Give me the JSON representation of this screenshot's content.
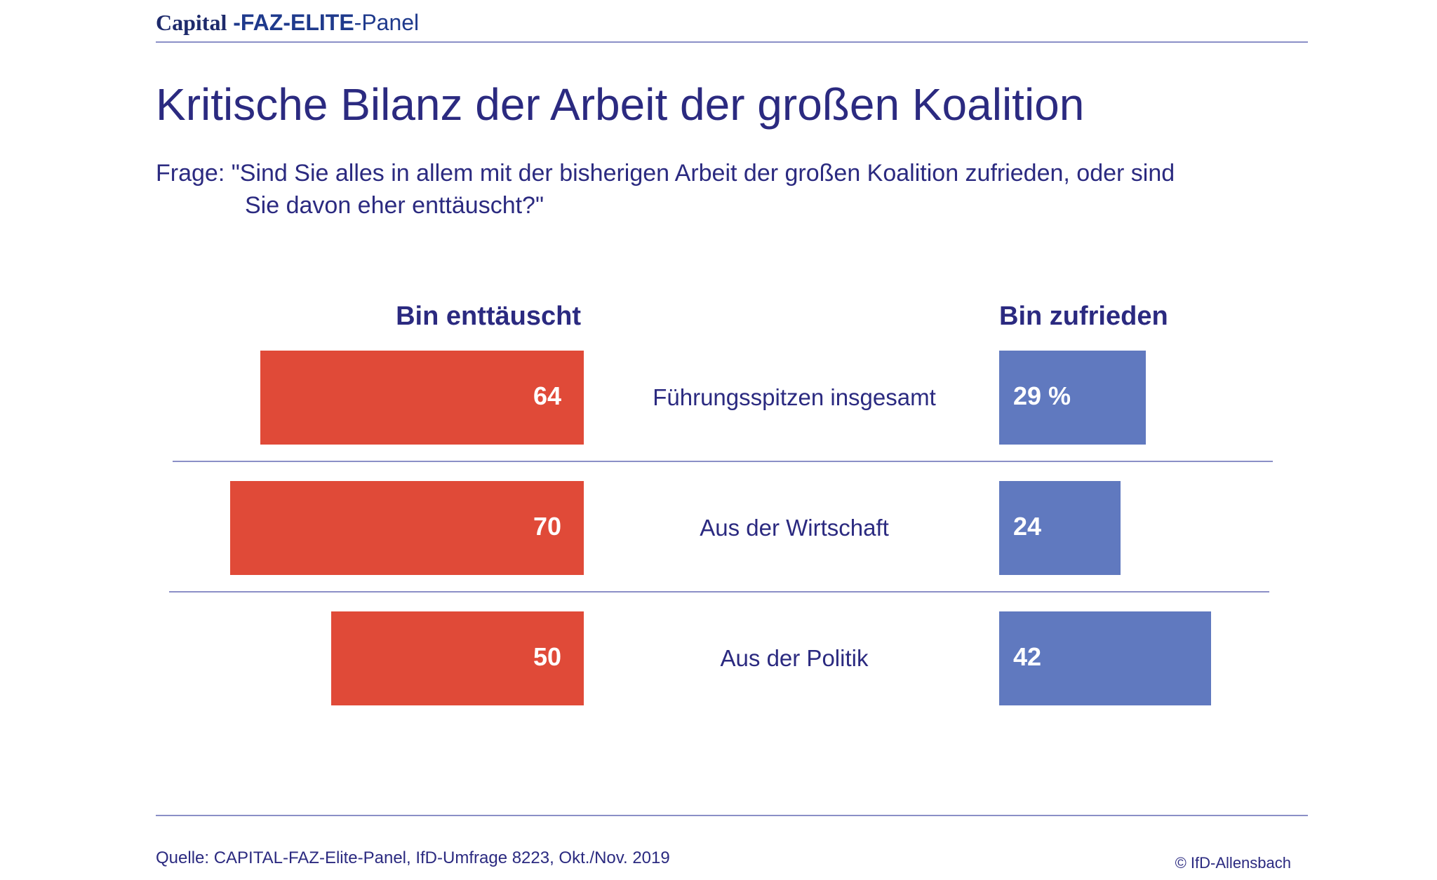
{
  "header": {
    "brand_part1": "Capital",
    "brand_part2": "-FAZ-ELITE",
    "brand_part3": "-Panel"
  },
  "colors": {
    "disappointed": "#e04a38",
    "satisfied": "#6079bf",
    "text": "#2b2a80",
    "rule": "#8b8fc7"
  },
  "chart_data": {
    "type": "bar",
    "title": "Kritische Bilanz der Arbeit der großen Koalition",
    "question_line1": "Frage: \"Sind Sie alles in allem mit der bisherigen Arbeit der großen Koalition zufrieden, oder sind",
    "question_line2": "Sie davon eher enttäuscht?\"",
    "categories": [
      "Führungsspitzen insgesamt",
      "Aus der Wirtschaft",
      "Aus der Politik"
    ],
    "series": [
      {
        "name": "Bin enttäuscht",
        "values": [
          64,
          70,
          50
        ],
        "labels": [
          "64",
          "70",
          "50"
        ],
        "color": "#e04a38"
      },
      {
        "name": "Bin zufrieden",
        "values": [
          29,
          24,
          42
        ],
        "labels": [
          "29 %",
          "24",
          "42"
        ],
        "color": "#6079bf"
      }
    ]
  },
  "footer": {
    "source": "Quelle: CAPITAL-FAZ-Elite-Panel, IfD-Umfrage 8223, Okt./Nov. 2019",
    "copyright": "© IfD-Allensbach"
  }
}
